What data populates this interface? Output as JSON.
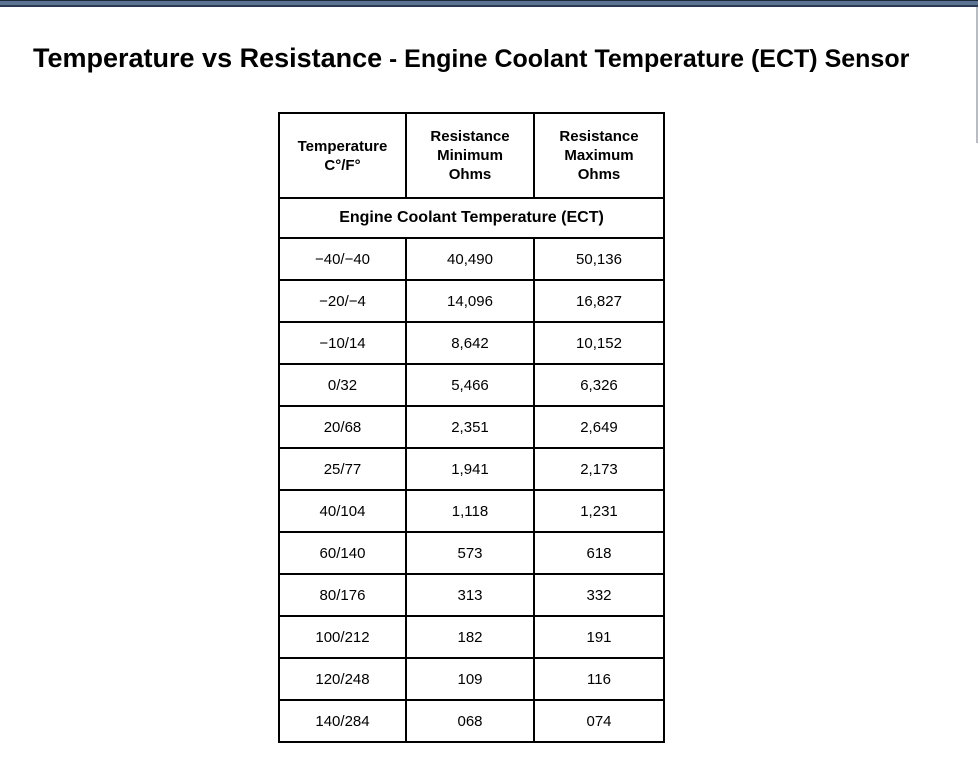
{
  "title": {
    "segment1": "Temperature vs Resistance",
    "separator": "-",
    "segment2": "Engine Coolant Temperature (ECT) Sensor"
  },
  "table": {
    "header_cols": [
      {
        "lines": [
          "Temperature",
          "C°/F°"
        ]
      },
      {
        "lines": [
          "Resistance",
          "Minimum",
          "Ohms"
        ]
      },
      {
        "lines": [
          "Resistance",
          "Maximum",
          "Ohms"
        ]
      }
    ],
    "section_header": "Engine Coolant Temperature (ECT)",
    "rows": [
      {
        "temp": "−40/−40",
        "min": "40,490",
        "max": "50,136"
      },
      {
        "temp": "−20/−4",
        "min": "14,096",
        "max": "16,827"
      },
      {
        "temp": "−10/14",
        "min": "8,642",
        "max": "10,152"
      },
      {
        "temp": "0/32",
        "min": "5,466",
        "max": "6,326"
      },
      {
        "temp": "20/68",
        "min": "2,351",
        "max": "2,649"
      },
      {
        "temp": "25/77",
        "min": "1,941",
        "max": "2,173"
      },
      {
        "temp": "40/104",
        "min": "1,118",
        "max": "1,231"
      },
      {
        "temp": "60/140",
        "min": "573",
        "max": "618"
      },
      {
        "temp": "80/176",
        "min": "313",
        "max": "332"
      },
      {
        "temp": "100/212",
        "min": "182",
        "max": "191"
      },
      {
        "temp": "120/248",
        "min": "109",
        "max": "116"
      },
      {
        "temp": "140/284",
        "min": "068",
        "max": "074"
      }
    ]
  },
  "colors": {
    "top_bar_fill": "#5d7394",
    "top_bar_edge": "#1c2a3d",
    "table_border": "#000000"
  }
}
